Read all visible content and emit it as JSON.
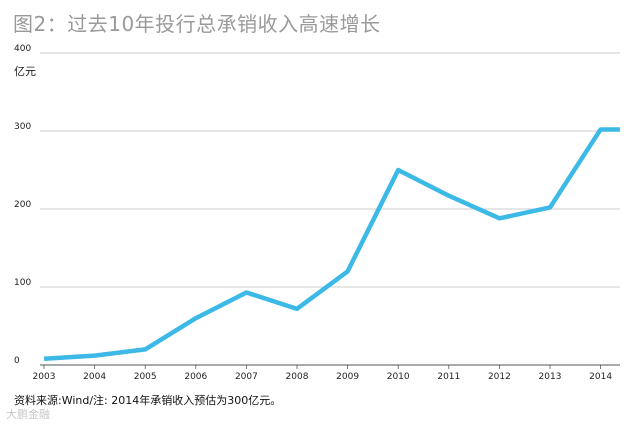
{
  "title": "图2：过去10年投行总承销收入高速增长",
  "source": "资料来源:Wind/注: 2014年承销收入预估为300亿元。",
  "watermark": "大鹏金融",
  "chart_data": {
    "type": "line",
    "title": "图2：过去10年投行总承销收入高速增长",
    "ylabel": "亿元",
    "xlabel": "",
    "categories": [
      "2003",
      "2004",
      "2005",
      "2006",
      "2007",
      "2008",
      "2009",
      "2010",
      "2011",
      "2012",
      "2013",
      "2014"
    ],
    "series": [
      {
        "values": [
          8,
          12,
          20,
          60,
          93,
          72,
          120,
          250,
          217,
          188,
          202,
          302
        ]
      }
    ],
    "ylim": [
      0,
      400
    ],
    "yticks": [
      0,
      100,
      200,
      300,
      400
    ],
    "grid": true,
    "line_color": "#3cb9e6",
    "grid_color": "#bdbdbd"
  }
}
